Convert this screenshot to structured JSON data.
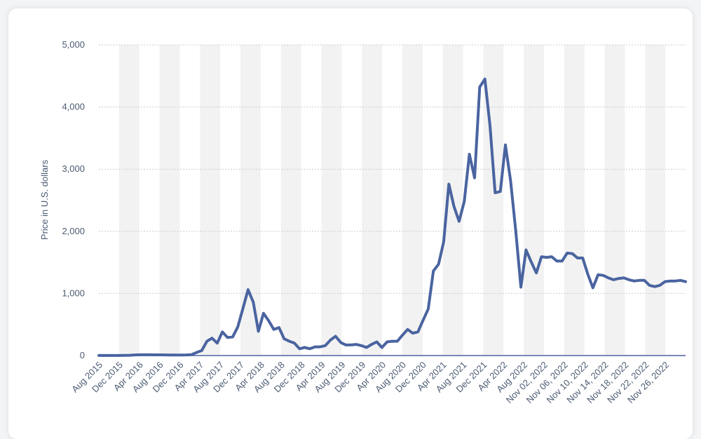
{
  "chart_data": {
    "type": "line",
    "ylabel": "Price in U.S. dollars",
    "xlabel": "",
    "title": "",
    "ylim": [
      0,
      5000
    ],
    "yticks": [
      0,
      1000,
      2000,
      3000,
      4000,
      5000
    ],
    "ytick_labels": [
      "0",
      "1,000",
      "2,000",
      "3,000",
      "4,000",
      "5,000"
    ],
    "grid": true,
    "line_color": "#4a64a0",
    "band_color": "#f2f2f2",
    "grid_color": "#c8ccd4",
    "x_labels": [
      "Aug 2015",
      "Dec 2015",
      "Apr 2016",
      "Aug 2016",
      "Dec 2016",
      "Apr 2017",
      "Aug 2017",
      "Dec 2017",
      "Apr 2018",
      "Aug 2018",
      "Dec 2018",
      "Apr 2019",
      "Aug 2019",
      "Dec 2019",
      "Apr 2020",
      "Aug 2020",
      "Dec 2020",
      "Apr 2021",
      "Aug 2021",
      "Dec 2021",
      "Apr 2022",
      "Aug 2022",
      "Nov 02, 2022",
      "Nov 06, 2022",
      "Nov 10, 2022",
      "Nov 14, 2022",
      "Nov 18, 2022",
      "Nov 22, 2022",
      "Nov 26, 2022"
    ],
    "values": [
      1,
      1,
      1,
      1,
      1,
      2,
      5,
      10,
      12,
      12,
      12,
      11,
      11,
      10,
      9,
      8,
      8,
      10,
      15,
      50,
      80,
      230,
      280,
      200,
      380,
      290,
      300,
      460,
      760,
      1060,
      860,
      390,
      680,
      560,
      420,
      450,
      270,
      230,
      200,
      110,
      130,
      110,
      140,
      140,
      160,
      250,
      310,
      210,
      170,
      170,
      180,
      160,
      130,
      180,
      220,
      130,
      220,
      230,
      230,
      330,
      420,
      360,
      380,
      570,
      750,
      1360,
      1470,
      1830,
      2760,
      2400,
      2160,
      2480,
      3240,
      2860,
      4320,
      4450,
      3700,
      2620,
      2640,
      3390,
      2810,
      2010,
      1100,
      1700,
      1510,
      1330,
      1590,
      1580,
      1590,
      1520,
      1520,
      1650,
      1640,
      1570,
      1570,
      1310,
      1090,
      1300,
      1290,
      1250,
      1220,
      1240,
      1250,
      1220,
      1200,
      1210,
      1210,
      1130,
      1110,
      1130,
      1190,
      1200,
      1200,
      1210,
      1190
    ]
  }
}
